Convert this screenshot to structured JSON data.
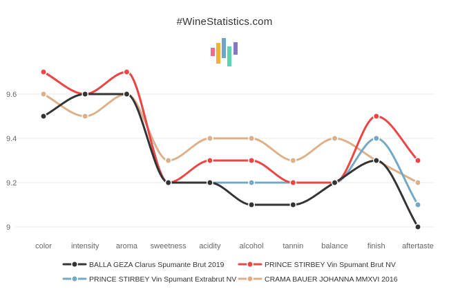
{
  "header": {
    "site_title": "#WineStatistics.com",
    "logo_colors": [
      "#f06a8c",
      "#f2b233",
      "#6fa6c7",
      "#5fd3b3",
      "#8a75c2"
    ]
  },
  "chart_data": {
    "type": "line",
    "title": "",
    "xlabel": "",
    "ylabel": "",
    "categories": [
      "color",
      "intensity",
      "aroma",
      "sweetness",
      "acidity",
      "alcohol",
      "tannin",
      "balance",
      "finish",
      "aftertaste"
    ],
    "ylim": [
      9,
      9.7
    ],
    "yticks": [
      9,
      9.2,
      9.4,
      9.6
    ],
    "ytick_labels": [
      "9",
      "9.2",
      "9.4",
      "9.6"
    ],
    "grid": true,
    "legend_position": "bottom",
    "series": [
      {
        "name": "BALLA GEZA Clarus Spumante Brut 2019",
        "color": "#333333",
        "values": [
          9.5,
          9.6,
          9.6,
          9.2,
          9.2,
          9.1,
          9.1,
          9.2,
          9.3,
          9.0
        ]
      },
      {
        "name": "PRINCE STIRBEY Vin Spumant Brut NV",
        "color": "#ee4444",
        "values": [
          9.7,
          9.6,
          9.7,
          9.2,
          9.3,
          9.3,
          9.2,
          9.2,
          9.5,
          9.3
        ]
      },
      {
        "name": "PRINCE STIRBEY Vin Spumant Extrabrut NV",
        "color": "#74a9c3",
        "values": [
          9.7,
          9.6,
          9.7,
          9.2,
          9.2,
          9.2,
          9.2,
          9.2,
          9.4,
          9.1
        ]
      },
      {
        "name": "CRAMA BAUER JOHANNA MMXVI 2016",
        "color": "#deb08a",
        "values": [
          9.6,
          9.5,
          9.6,
          9.3,
          9.4,
          9.4,
          9.3,
          9.4,
          9.3,
          9.2
        ]
      }
    ]
  }
}
